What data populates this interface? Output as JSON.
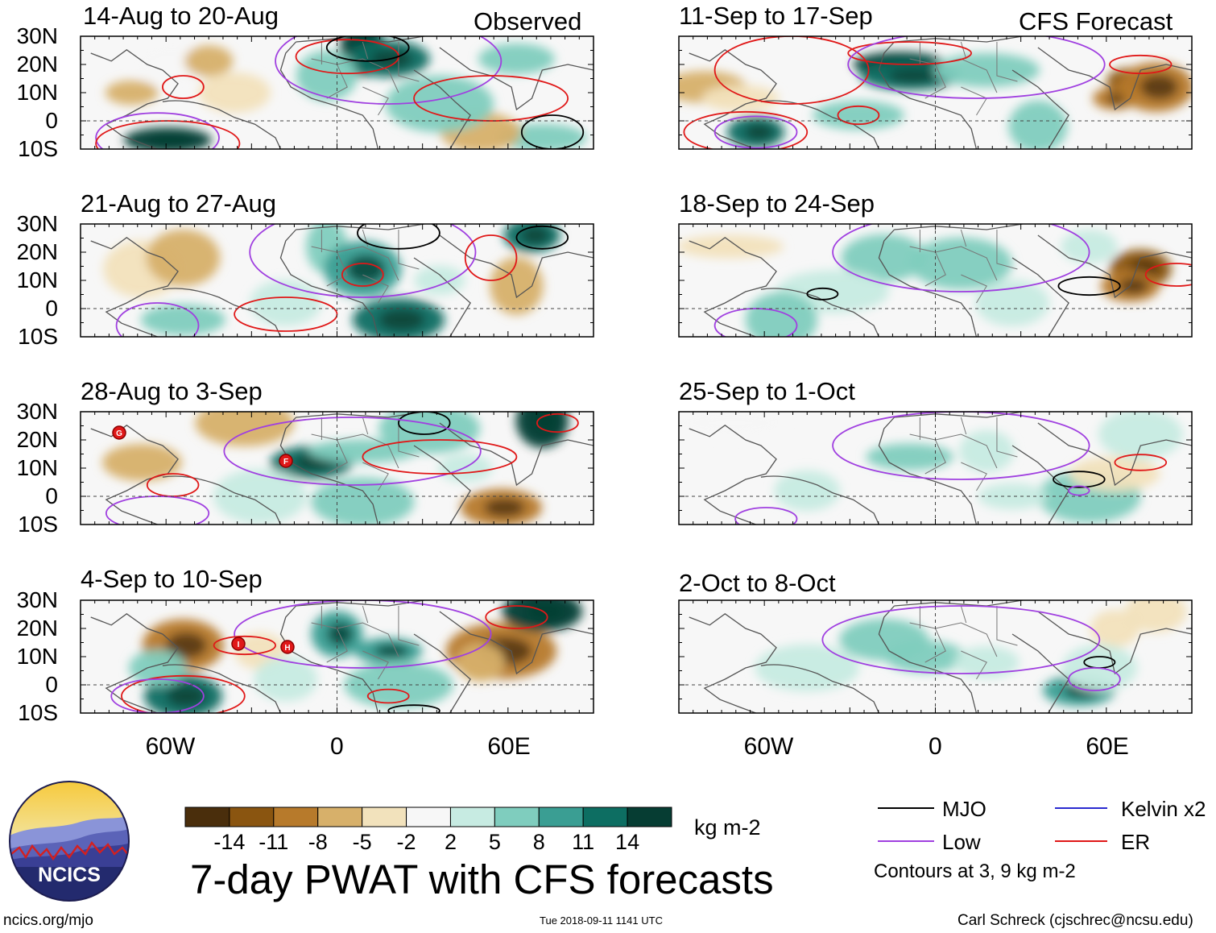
{
  "header": {
    "observed_label": "Observed",
    "forecast_label": "CFS Forecast"
  },
  "latitude_labels": [
    "30N",
    "20N",
    "10N",
    "0",
    "10S"
  ],
  "longitude_labels": [
    "60W",
    "0",
    "60E"
  ],
  "panels": {
    "observed": [
      {
        "title": "14-Aug to 20-Aug"
      },
      {
        "title": "21-Aug to 27-Aug"
      },
      {
        "title": "28-Aug to 3-Sep"
      },
      {
        "title": "4-Sep to 10-Sep"
      }
    ],
    "forecast": [
      {
        "title": "11-Sep to 17-Sep"
      },
      {
        "title": "18-Sep to 24-Sep"
      },
      {
        "title": "25-Sep to 1-Oct"
      },
      {
        "title": "2-Oct to 8-Oct"
      }
    ]
  },
  "storm_markers": [
    {
      "label": "G",
      "panel": "28-Aug to 3-Sep"
    },
    {
      "label": "F",
      "panel": "28-Aug to 3-Sep"
    },
    {
      "label": "I",
      "panel": "4-Sep to 10-Sep"
    },
    {
      "label": "H",
      "panel": "4-Sep to 10-Sep"
    }
  ],
  "colorbar": {
    "ticks": [
      "-14",
      "-11",
      "-8",
      "-5",
      "-2",
      "2",
      "5",
      "8",
      "11",
      "14"
    ],
    "colors": [
      "#4a2e0c",
      "#8a5510",
      "#b77a2b",
      "#d7b06a",
      "#f2e2bc",
      "#f7f7f7",
      "#c7ebe2",
      "#7fcdbe",
      "#3a9e93",
      "#0d6e62",
      "#063d33"
    ],
    "units": "kg m-2"
  },
  "legend": {
    "items": [
      {
        "label": "MJO",
        "color": "#000000"
      },
      {
        "label": "Kelvin x2",
        "color": "#2a2ad0"
      },
      {
        "label": "Low",
        "color": "#a040e0"
      },
      {
        "label": "ER",
        "color": "#e01818"
      }
    ],
    "note": "Contours at 3, 9 kg m-2"
  },
  "logo": {
    "text": "NCICS"
  },
  "footer": {
    "title": "7-day PWAT with CFS forecasts",
    "url": "ncics.org/mjo",
    "timestamp": "Tue 2018-09-11 1141 UTC",
    "credit": "Carl Schreck (cjschrec@ncsu.edu)"
  }
}
